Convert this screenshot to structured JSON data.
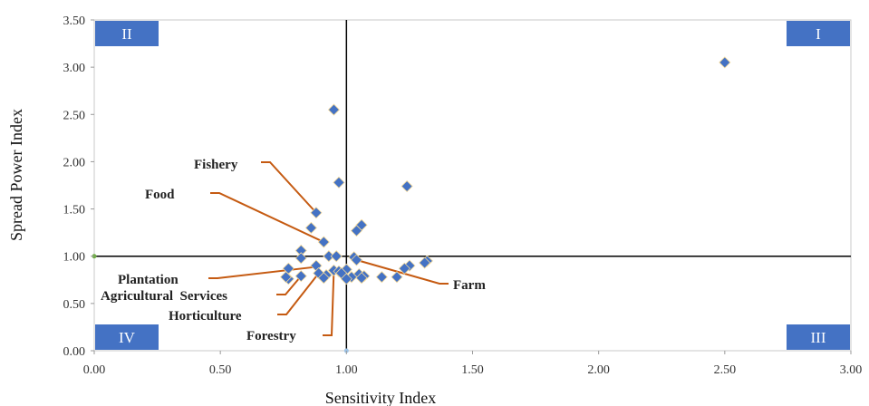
{
  "chart_data": {
    "type": "scatter",
    "title": "",
    "xlabel": "Sensitivity Index",
    "ylabel": "Spread Power Index",
    "xlim": [
      0,
      3
    ],
    "ylim": [
      0,
      3.5
    ],
    "x_ticks": [
      "0.00",
      "0.50",
      "1.00",
      "1.50",
      "2.00",
      "2.50",
      "3.00"
    ],
    "y_ticks": [
      "0.00",
      "0.50",
      "1.00",
      "1.50",
      "2.00",
      "2.50",
      "3.00",
      "3.50"
    ],
    "reference_lines": {
      "x": 1.0,
      "y": 1.0
    },
    "grid": false,
    "marker_color": "#4472c4",
    "annotation_color": "#c55a11",
    "quadrant_color": "#4472c4",
    "quadrants": [
      {
        "label": "I",
        "corner": "top-right"
      },
      {
        "label": "II",
        "corner": "top-left"
      },
      {
        "label": "III",
        "corner": "bottom-right"
      },
      {
        "label": "IV",
        "corner": "bottom-left"
      }
    ],
    "points": [
      {
        "x": 2.5,
        "y": 3.05
      },
      {
        "x": 0.95,
        "y": 2.55
      },
      {
        "x": 0.97,
        "y": 1.78
      },
      {
        "x": 1.24,
        "y": 1.74
      },
      {
        "x": 0.88,
        "y": 1.46
      },
      {
        "x": 1.06,
        "y": 1.33
      },
      {
        "x": 1.04,
        "y": 1.27
      },
      {
        "x": 0.86,
        "y": 1.3
      },
      {
        "x": 0.91,
        "y": 1.15
      },
      {
        "x": 0.82,
        "y": 1.06
      },
      {
        "x": 0.82,
        "y": 0.98
      },
      {
        "x": 0.93,
        "y": 1.0
      },
      {
        "x": 0.96,
        "y": 1.0
      },
      {
        "x": 1.03,
        "y": 0.99
      },
      {
        "x": 1.04,
        "y": 0.96
      },
      {
        "x": 1.32,
        "y": 0.95
      },
      {
        "x": 1.31,
        "y": 0.93
      },
      {
        "x": 1.25,
        "y": 0.9
      },
      {
        "x": 1.23,
        "y": 0.87
      },
      {
        "x": 0.77,
        "y": 0.87
      },
      {
        "x": 0.88,
        "y": 0.9
      },
      {
        "x": 1.0,
        "y": 0.86
      },
      {
        "x": 0.95,
        "y": 0.85
      },
      {
        "x": 0.97,
        "y": 0.84
      },
      {
        "x": 0.98,
        "y": 0.82
      },
      {
        "x": 0.92,
        "y": 0.8
      },
      {
        "x": 0.89,
        "y": 0.82
      },
      {
        "x": 1.05,
        "y": 0.81
      },
      {
        "x": 1.07,
        "y": 0.79
      },
      {
        "x": 1.14,
        "y": 0.78
      },
      {
        "x": 1.2,
        "y": 0.78
      },
      {
        "x": 1.06,
        "y": 0.77
      },
      {
        "x": 1.02,
        "y": 0.78
      },
      {
        "x": 1.0,
        "y": 0.76
      },
      {
        "x": 0.91,
        "y": 0.77
      },
      {
        "x": 0.82,
        "y": 0.79
      },
      {
        "x": 0.77,
        "y": 0.76
      },
      {
        "x": 0.76,
        "y": 0.78
      }
    ],
    "annotations": [
      {
        "text": "Fishery",
        "x": 0.88,
        "y": 1.46
      },
      {
        "text": "Food",
        "x": 0.91,
        "y": 1.15
      },
      {
        "text": "Plantation",
        "x": 0.89,
        "y": 0.89
      },
      {
        "text": "Agricultural  Services",
        "x": 0.82,
        "y": 0.79
      },
      {
        "text": "Horticulture",
        "x": 0.89,
        "y": 0.82
      },
      {
        "text": "Forestry",
        "x": 0.95,
        "y": 0.85
      },
      {
        "text": "Farm",
        "x": 1.04,
        "y": 0.96
      }
    ]
  }
}
